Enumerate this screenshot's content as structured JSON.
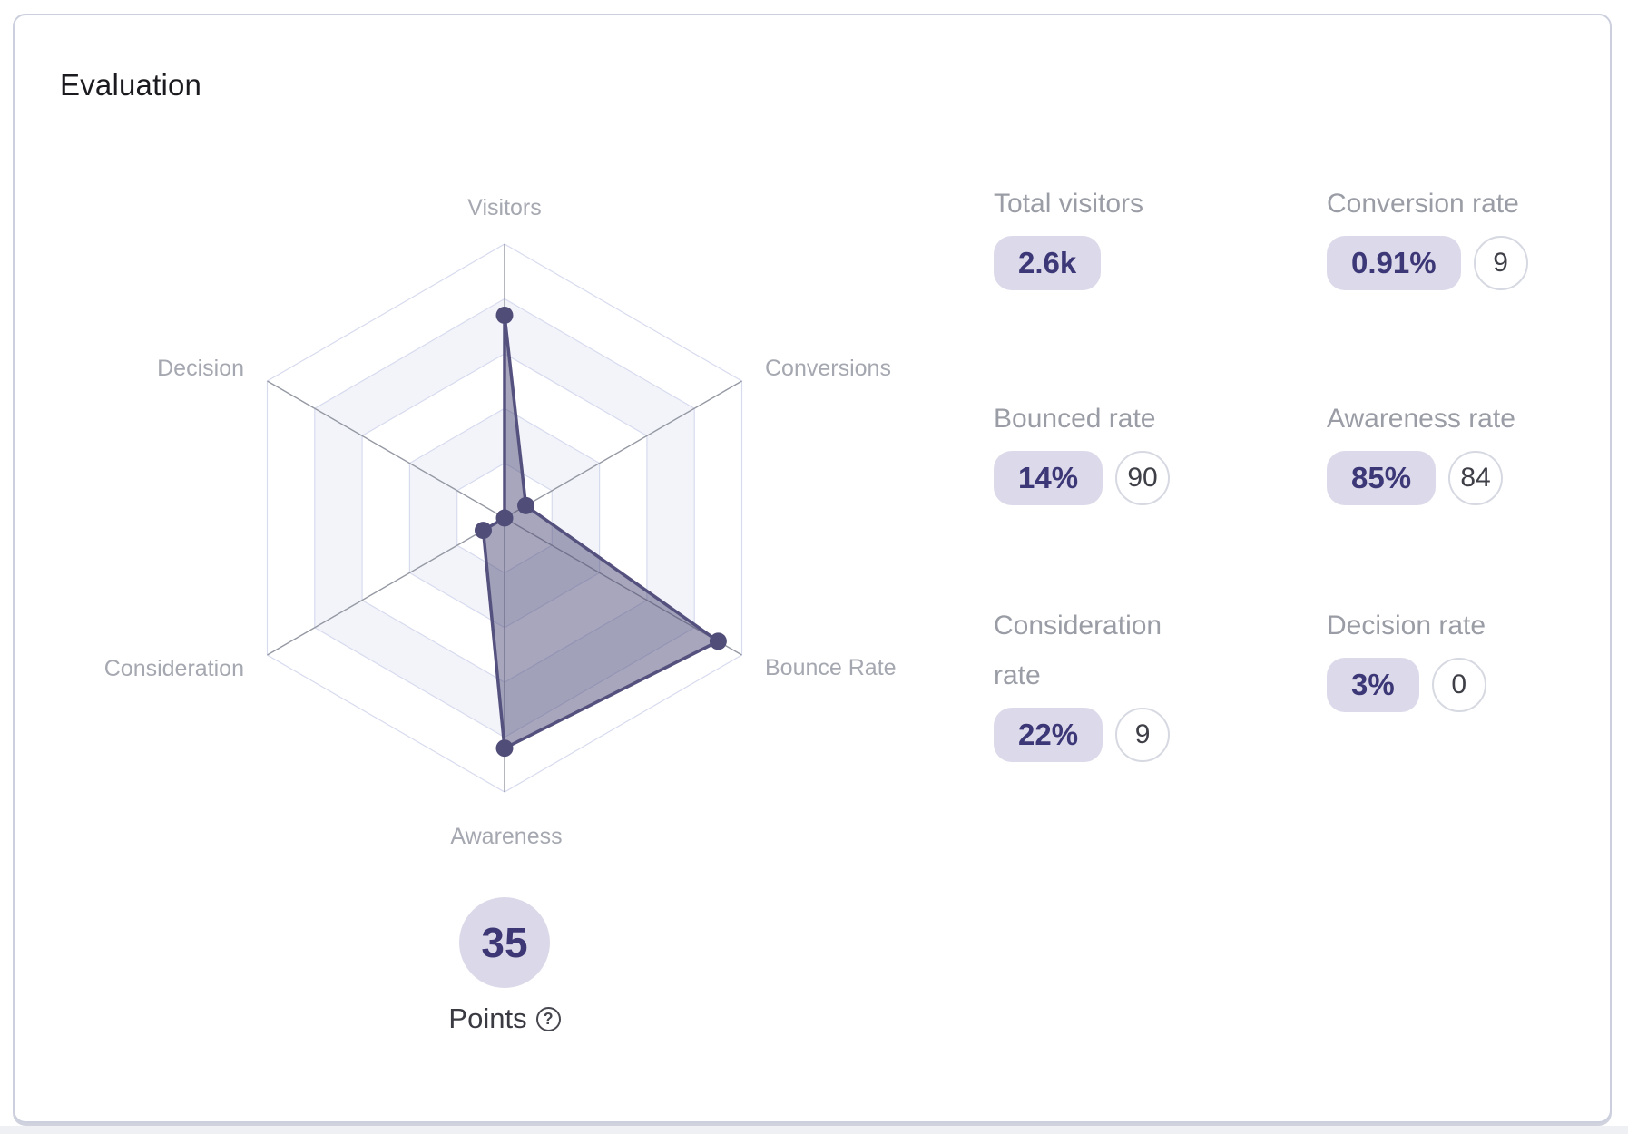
{
  "card": {
    "title": "Evaluation"
  },
  "chart_data": {
    "type": "radar",
    "categories": [
      "Visitors",
      "Conversions",
      "Bounce Rate",
      "Awareness",
      "Consideration",
      "Decision"
    ],
    "values": [
      74,
      9,
      90,
      84,
      9,
      0
    ],
    "scale": {
      "min": 0,
      "max": 100,
      "rings": 5
    },
    "legend": "none",
    "grid": "hexagonal, alternating band fills",
    "colors": {
      "fill": "rgba(82,78,122,0.5)",
      "stroke": "#55517e",
      "point": "#514d79",
      "ring_line": "#d7dbee",
      "ring_band": "#f3f4fa",
      "axis_line": "#9599a3",
      "label": "#a5a8b0"
    }
  },
  "points_badge": {
    "value": "35",
    "label": "Points",
    "help_icon": "?"
  },
  "metrics": [
    {
      "label": "Total visitors",
      "value": "2.6k",
      "score": null
    },
    {
      "label": "Conversion rate",
      "value": "0.91%",
      "score": "9"
    },
    {
      "label": "Bounced rate",
      "value": "14%",
      "score": "90"
    },
    {
      "label": "Awareness rate",
      "value": "85%",
      "score": "84"
    },
    {
      "label": "Consideration rate",
      "value": "22%",
      "score": "9"
    },
    {
      "label": "Decision rate",
      "value": "3%",
      "score": "0"
    }
  ],
  "colors": {
    "accent_indigo": "#3c3776",
    "pill_background": "#dcdaea",
    "points_circle_background": "#dbd9e9",
    "metric_label_gray": "#9a9da5",
    "score_circle_border": "#d7d9e2",
    "card_border": "#ccd0de"
  }
}
